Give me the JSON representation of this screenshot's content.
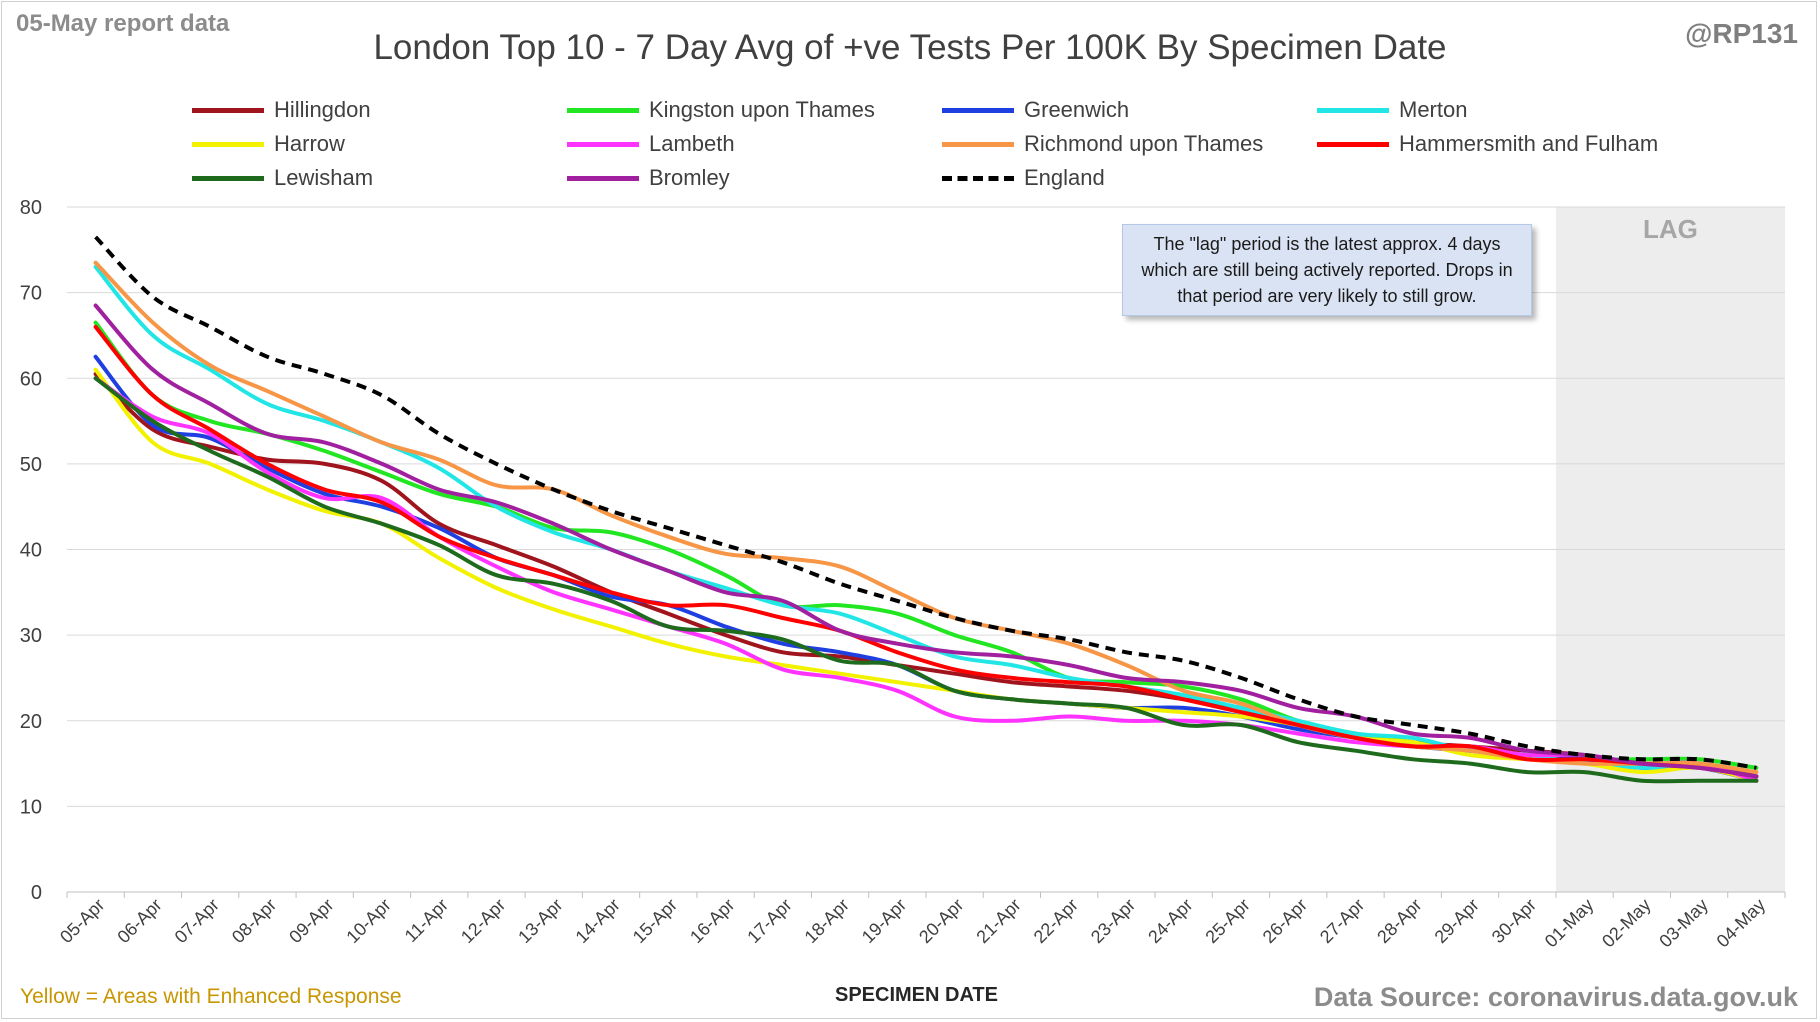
{
  "header": {
    "report_note": "05-May report data",
    "handle": "@RP131"
  },
  "footer": {
    "yellow_note": "Yellow = Areas with Enhanced Response",
    "source": "Data Source: coronavirus.data.gov.uk"
  },
  "annotation": {
    "lag_text": "The \"lag\" period is the latest approx. 4 days which are still being actively reported. Drops in that period are very likely to still grow.",
    "lag_label": "LAG"
  },
  "colors": {
    "grid": "#d9d9d9",
    "axis_text": "#404040",
    "lag_shading": "#ededed"
  },
  "chart_data": {
    "type": "line",
    "title": "London Top 10 - 7 Day Avg of +ve Tests Per 100K By Specimen Date",
    "xlabel": "SPECIMEN DATE",
    "ylabel": "",
    "ylim": [
      0,
      80
    ],
    "yticks": [
      0,
      10,
      20,
      30,
      40,
      50,
      60,
      70,
      80
    ],
    "grid": true,
    "legend_position": "top",
    "lag_period": [
      "01-May",
      "04-May"
    ],
    "categories": [
      "05-Apr",
      "06-Apr",
      "07-Apr",
      "08-Apr",
      "09-Apr",
      "10-Apr",
      "11-Apr",
      "12-Apr",
      "13-Apr",
      "14-Apr",
      "15-Apr",
      "16-Apr",
      "17-Apr",
      "18-Apr",
      "19-Apr",
      "20-Apr",
      "21-Apr",
      "22-Apr",
      "23-Apr",
      "24-Apr",
      "25-Apr",
      "26-Apr",
      "27-Apr",
      "28-Apr",
      "29-Apr",
      "30-Apr",
      "01-May",
      "02-May",
      "03-May",
      "04-May"
    ],
    "series": [
      {
        "name": "Hillingdon",
        "color": "#a0141e",
        "dash": false,
        "values": [
          60.5,
          54,
          52,
          50.5,
          50,
          48,
          43,
          40.5,
          38,
          35,
          32.5,
          30,
          28,
          27.5,
          26.5,
          25.5,
          24.5,
          24,
          23.5,
          22.5,
          21.5,
          19.5,
          18.5,
          17.5,
          17,
          16.5,
          16,
          15,
          15,
          13.5
        ]
      },
      {
        "name": "Kingston upon Thames",
        "color": "#22e622",
        "dash": false,
        "values": [
          66.5,
          58,
          55,
          53.5,
          51.5,
          49,
          46.5,
          45,
          42.5,
          42,
          40,
          37,
          33.5,
          33.5,
          32.5,
          30,
          28,
          25,
          24.5,
          24,
          22.5,
          20,
          18.5,
          17.5,
          16.5,
          16,
          15.5,
          15.5,
          15.5,
          14.5
        ]
      },
      {
        "name": "Greenwich",
        "color": "#1f3fe0",
        "dash": false,
        "values": [
          62.5,
          54.5,
          53,
          49.5,
          46.5,
          45,
          42.5,
          39,
          37,
          34.5,
          33.5,
          31,
          29,
          28,
          26.5,
          23.5,
          22.5,
          22,
          21.5,
          21.5,
          20.5,
          19,
          18,
          17,
          16.5,
          16,
          15.5,
          14.5,
          14.5,
          13
        ]
      },
      {
        "name": "Merton",
        "color": "#22e6e6",
        "dash": false,
        "values": [
          73,
          65,
          61,
          57,
          55,
          52.5,
          49.5,
          45,
          42,
          40,
          37.5,
          35.5,
          33.5,
          32.5,
          30,
          27.5,
          26.5,
          25,
          24,
          23,
          21.5,
          20,
          18.5,
          18,
          16.5,
          16,
          15,
          14.5,
          14.5,
          13.5
        ]
      },
      {
        "name": "Harrow",
        "color": "#f2f200",
        "dash": false,
        "values": [
          61,
          52.5,
          50,
          47,
          44.5,
          43,
          39,
          35.5,
          33,
          31,
          29,
          27.5,
          26.5,
          25.5,
          24.5,
          23.5,
          22.5,
          22,
          21.5,
          21,
          20.5,
          19.5,
          18,
          17.5,
          16,
          15.5,
          15,
          14,
          14.5,
          13
        ]
      },
      {
        "name": "Lambeth",
        "color": "#ff33ff",
        "dash": false,
        "values": [
          60,
          55.5,
          53.5,
          49,
          46,
          46,
          41.5,
          38,
          35,
          33,
          31,
          29,
          26,
          25,
          23.5,
          20.5,
          20,
          20.5,
          20,
          20,
          19.5,
          18.5,
          17.5,
          17,
          17,
          16,
          16,
          15,
          15,
          13
        ]
      },
      {
        "name": "Richmond upon Thames",
        "color": "#f79646",
        "dash": false,
        "values": [
          73.5,
          66.5,
          61.5,
          58.5,
          55.5,
          52.5,
          50.5,
          47.5,
          47,
          44,
          41.5,
          39.5,
          39,
          38,
          35,
          32,
          30.5,
          29,
          26.5,
          23.5,
          22,
          19.5,
          18,
          17,
          16.5,
          15.5,
          15,
          15,
          15,
          14
        ]
      },
      {
        "name": "Hammersmith and Fulham",
        "color": "#ff0000",
        "dash": false,
        "values": [
          66,
          58,
          54,
          50,
          47,
          45.5,
          41.5,
          39,
          37,
          35,
          33.5,
          33.5,
          32,
          30.5,
          28,
          26,
          25,
          24.5,
          24,
          22.5,
          21,
          19.5,
          18,
          17,
          17,
          15.5,
          15.5,
          15,
          14.5,
          13.5
        ]
      },
      {
        "name": "Lewisham",
        "color": "#1e6b1e",
        "dash": false,
        "values": [
          60,
          55,
          51.5,
          48.5,
          45,
          43,
          40.5,
          37,
          36,
          34,
          31,
          30.5,
          29.5,
          27,
          26.5,
          23.5,
          22.5,
          22,
          21.5,
          19.5,
          19.5,
          17.5,
          16.5,
          15.5,
          15,
          14,
          14,
          13,
          13,
          13
        ]
      },
      {
        "name": "Bromley",
        "color": "#a020a0",
        "dash": false,
        "values": [
          68.5,
          61,
          57,
          53.5,
          52.5,
          50,
          47,
          45.5,
          43,
          40,
          37.5,
          35,
          34,
          30.5,
          29,
          28,
          27.5,
          26.5,
          25,
          24.5,
          23.5,
          21.5,
          20.5,
          18.5,
          18,
          16.5,
          16,
          15,
          14.5,
          13.5
        ]
      },
      {
        "name": "England",
        "color": "#000000",
        "dash": true,
        "values": [
          76.5,
          69.5,
          66,
          62.5,
          60.5,
          58,
          53.5,
          50,
          47,
          44.5,
          42.5,
          40.5,
          38.5,
          36,
          34,
          32,
          30.5,
          29.5,
          28,
          27,
          25,
          22.5,
          20.5,
          19.5,
          18.5,
          17,
          16,
          15.5,
          15.5,
          14.5
        ]
      }
    ]
  }
}
